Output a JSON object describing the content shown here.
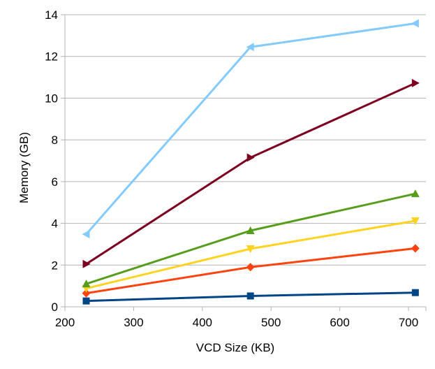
{
  "chart_data": {
    "type": "line",
    "title": "",
    "xlabel": "VCD Size (KB)",
    "ylabel": "Memory (GB)",
    "xlim": [
      200,
      700
    ],
    "ylim": [
      0,
      14
    ],
    "x_ticks": [
      200,
      300,
      400,
      500,
      600,
      700
    ],
    "y_ticks": [
      0,
      2,
      4,
      6,
      8,
      10,
      12,
      14
    ],
    "grid": "horizontal",
    "legend": "none",
    "x": [
      231,
      470,
      710
    ],
    "series": [
      {
        "values": [
          0.28,
          0.52,
          0.68
        ],
        "color": "#004586",
        "marker": "square"
      },
      {
        "values": [
          0.65,
          1.9,
          2.8
        ],
        "color": "#ff420e",
        "marker": "diamond"
      },
      {
        "values": [
          0.88,
          2.78,
          4.12
        ],
        "color": "#ffd320",
        "marker": "triangle-down"
      },
      {
        "values": [
          1.1,
          3.65,
          5.42
        ],
        "color": "#579d1c",
        "marker": "triangle-up"
      },
      {
        "values": [
          2.05,
          7.15,
          10.72
        ],
        "color": "#7e0021",
        "marker": "triangle-right"
      },
      {
        "values": [
          3.48,
          12.45,
          13.58
        ],
        "color": "#83caff",
        "marker": "triangle-left"
      }
    ]
  }
}
